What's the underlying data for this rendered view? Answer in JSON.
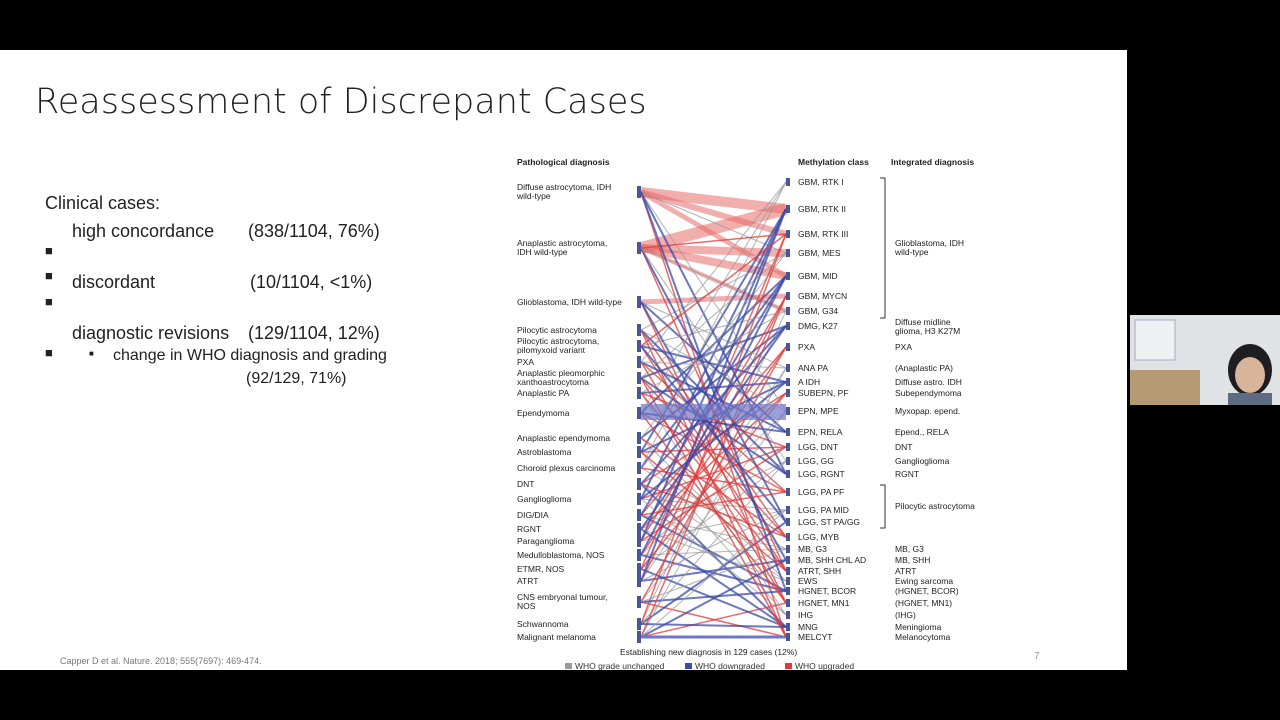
{
  "slide": {
    "title": "Reassessment of Discrepant Cases",
    "intro": "Clinical cases:",
    "bullets": [
      {
        "text": "high concordance",
        "stat": "(838/1104, 76%)"
      },
      {
        "text": "discordant",
        "stat": "(10/1104, <1%)"
      },
      {
        "text": "diagnostic revisions",
        "stat": "(129/1104, 12%)"
      }
    ],
    "sub_bullet": {
      "text": "change in WHO diagnosis and grading",
      "stat": "(92/129, 71%)"
    },
    "citation": "Capper D et al. Nature. 2018; 555(7697): 469-474.",
    "page_number": "7",
    "figure": {
      "headers": {
        "pathological": "Pathological diagnosis",
        "methylation": "Methylation class",
        "integrated": "Integrated diagnosis"
      },
      "pathological": [
        "Diffuse astrocytoma, IDH wild-type",
        "Anaplastic astrocytoma, IDH wild-type",
        "Glioblastoma, IDH wild-type",
        "Pilocytic astrocytoma",
        "Pilocytic astrocytoma, pilomyxoid variant",
        "PXA",
        "Anaplastic pleomorphic xanthoastrocytoma",
        "Anaplastic PA",
        "Ependymoma",
        "Anaplastic ependymoma",
        "Astroblastoma",
        "Choroid plexus carcinoma",
        "DNT",
        "Ganglioglioma",
        "DIG/DIA",
        "RGNT",
        "Paraganglioma",
        "Medulloblastoma, NOS",
        "ETMR, NOS",
        "ATRT",
        "CNS embryonal tumour, NOS",
        "Schwannoma",
        "Malignant melanoma"
      ],
      "methylation": [
        "GBM, RTK I",
        "GBM, RTK II",
        "GBM, RTK III",
        "GBM, MES",
        "GBM, MID",
        "GBM, MYCN",
        "GBM, G34",
        "DMG, K27",
        "PXA",
        "ANA PA",
        "A IDH",
        "SUBEPN, PF",
        "EPN, MPE",
        "EPN, RELA",
        "LGG, DNT",
        "LGG, GG",
        "LGG, RGNT",
        "LGG, PA PF",
        "LGG, PA MID",
        "LGG, ST PA/GG",
        "LGG, MYB",
        "MB, G3",
        "MB, SHH CHL AD",
        "ATRT, SHH",
        "EWS",
        "HGNET, BCOR",
        "HGNET, MN1",
        "IHG",
        "MNG",
        "MELCYT"
      ],
      "integrated": [
        "Glioblastoma, IDH wild-type",
        "Diffuse midline glioma, H3 K27M",
        "PXA",
        "(Anaplastic PA)",
        "Diffuse astro. IDH",
        "Subependymoma",
        "Myxopap. epend.",
        "Epend., RELA",
        "DNT",
        "Ganglioglioma",
        "RGNT",
        "Pilocytic astrocytoma",
        "MB, G3",
        "MB, SHH",
        "ATRT",
        "Ewing sarcoma",
        "(HGNET, BCOR)",
        "(HGNET, MN1)",
        "(IHG)",
        "Meningioma",
        "Melanocytoma"
      ],
      "caption": "Establishing new diagnosis in 129 cases (12%)",
      "legend": [
        "WHO grade unchanged",
        "WHO downgraded",
        "WHO upgraded"
      ]
    }
  }
}
